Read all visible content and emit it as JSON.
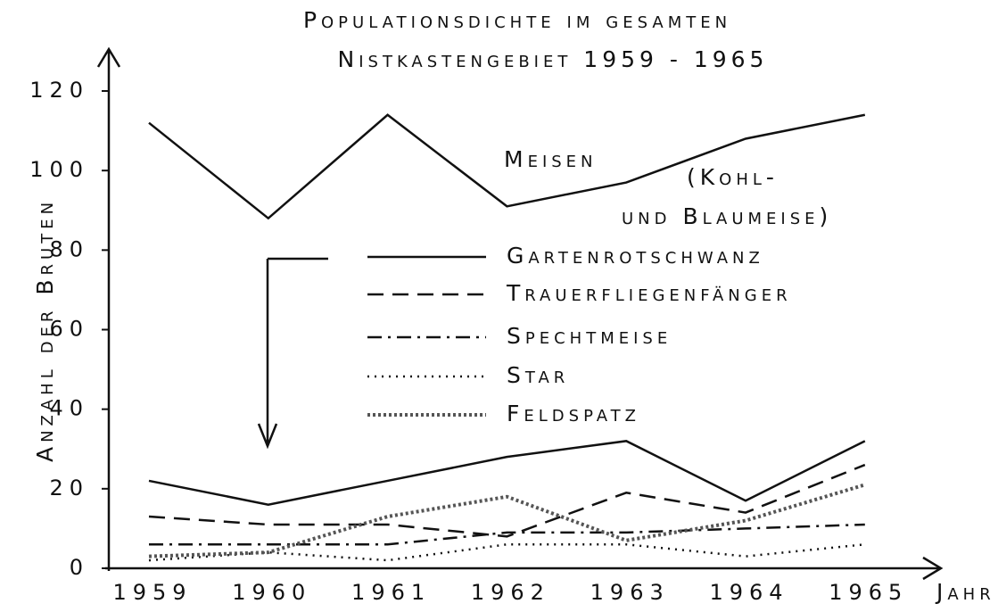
{
  "chart_data": {
    "type": "line",
    "title": [
      "Populationsdichte im gesamten",
      "Nistkastengebiet 1959 - 1965"
    ],
    "y_label": "Anzahl der Bruten",
    "x_label": "Jahr",
    "categories": [
      "1959",
      "1960",
      "1961",
      "1962",
      "1963",
      "1964",
      "1965"
    ],
    "ylim": [
      0,
      120
    ],
    "yticks": [
      0,
      20,
      40,
      60,
      80,
      100,
      120
    ],
    "grid": false,
    "annotation": [
      "(Kohl-",
      "und Blaumeise)"
    ],
    "series": [
      {
        "name": "Meisen",
        "color": "#111111",
        "dash": "solid",
        "values": [
          112,
          88,
          114,
          91,
          97,
          108,
          114
        ]
      },
      {
        "name": "Gartenrotschwanz",
        "color": "#111111",
        "dash": "solid",
        "values": [
          22,
          16,
          22,
          28,
          32,
          17,
          32
        ]
      },
      {
        "name": "Trauerfliegenfänger",
        "color": "#111111",
        "dash": "dashed",
        "values": [
          13,
          11,
          11,
          8,
          19,
          14,
          26
        ]
      },
      {
        "name": "Spechtmeise",
        "color": "#111111",
        "dash": "dashdot",
        "values": [
          6,
          6,
          6,
          9,
          9,
          10,
          11
        ]
      },
      {
        "name": "Star",
        "color": "#111111",
        "dash": "dotted",
        "values": [
          2,
          4,
          2,
          6,
          6,
          3,
          6
        ]
      },
      {
        "name": "Feldspatz",
        "color": "#555555",
        "dash": "cross",
        "values": [
          3,
          4,
          13,
          18,
          7,
          12,
          21
        ]
      }
    ]
  }
}
